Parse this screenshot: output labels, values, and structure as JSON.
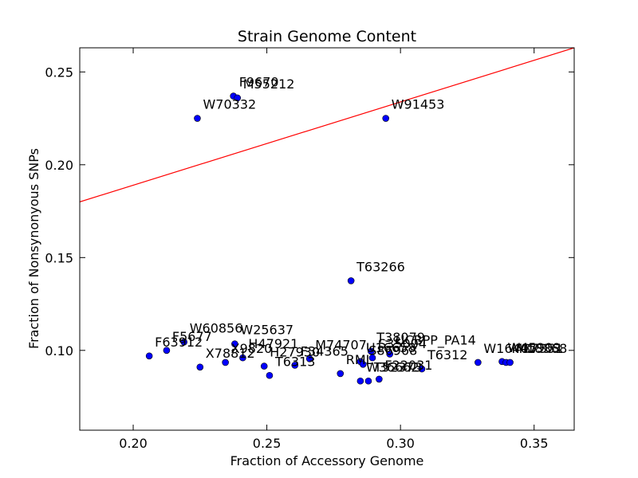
{
  "chart_data": {
    "type": "scatter",
    "title": "Strain Genome Content",
    "xlabel": "Fraction of Accessory Genome",
    "ylabel": "Fraction of Nonsynonyous SNPs",
    "xlim": [
      0.18,
      0.365
    ],
    "ylim": [
      0.057,
      0.263
    ],
    "xticks": [
      {
        "value": 0.2,
        "label": "0.20"
      },
      {
        "value": 0.25,
        "label": "0.25"
      },
      {
        "value": 0.3,
        "label": "0.30"
      },
      {
        "value": 0.35,
        "label": "0.35"
      }
    ],
    "yticks": [
      {
        "value": 0.1,
        "label": "0.10"
      },
      {
        "value": 0.15,
        "label": "0.15"
      },
      {
        "value": 0.2,
        "label": "0.20"
      },
      {
        "value": 0.25,
        "label": "0.25"
      }
    ],
    "grid": false,
    "reference_line": {
      "x": [
        0.18,
        0.365
      ],
      "y": [
        0.18,
        0.263
      ],
      "color": "#ff0000"
    },
    "marker_color": "#0000ff",
    "points": [
      {
        "label": "F9670",
        "x": 0.2375,
        "y": 0.237
      },
      {
        "label": "M55212",
        "x": 0.239,
        "y": 0.236
      },
      {
        "label": "W70332",
        "x": 0.224,
        "y": 0.225
      },
      {
        "label": "W91453",
        "x": 0.2945,
        "y": 0.225
      },
      {
        "label": "T63266",
        "x": 0.2815,
        "y": 0.1375
      },
      {
        "label": "F5677",
        "x": 0.2125,
        "y": 0.1
      },
      {
        "label": "W60856",
        "x": 0.219,
        "y": 0.1045
      },
      {
        "label": "W25637",
        "x": 0.238,
        "y": 0.1035
      },
      {
        "label": "H47921",
        "x": 0.241,
        "y": 0.096
      },
      {
        "label": "X78812",
        "x": 0.225,
        "y": 0.091
      },
      {
        "label": "X9820",
        "x": 0.2345,
        "y": 0.0935
      },
      {
        "label": "H27930",
        "x": 0.249,
        "y": 0.0915
      },
      {
        "label": "T6313",
        "x": 0.251,
        "y": 0.0865
      },
      {
        "label": "F34365",
        "x": 0.2605,
        "y": 0.092
      },
      {
        "label": "M74707",
        "x": 0.266,
        "y": 0.0955
      },
      {
        "label": "RML",
        "x": 0.2775,
        "y": 0.0875
      },
      {
        "label": "T38079",
        "x": 0.289,
        "y": 0.0995
      },
      {
        "label": "U16658",
        "x": 0.285,
        "y": 0.094
      },
      {
        "label": "S86968",
        "x": 0.286,
        "y": 0.0925
      },
      {
        "label": "S35004",
        "x": 0.2895,
        "y": 0.096
      },
      {
        "label": "W36662",
        "x": 0.285,
        "y": 0.0835
      },
      {
        "label": "T52373",
        "x": 0.288,
        "y": 0.0835
      },
      {
        "label": "F22031",
        "x": 0.292,
        "y": 0.0845
      },
      {
        "label": "T6312",
        "x": 0.308,
        "y": 0.09
      },
      {
        "label": "UCBPP_PA14",
        "x": 0.296,
        "y": 0.098
      },
      {
        "label": "W16407",
        "x": 0.329,
        "y": 0.0935
      },
      {
        "label": "W45909",
        "x": 0.338,
        "y": 0.094
      },
      {
        "label": "M37351",
        "x": 0.3395,
        "y": 0.0935
      },
      {
        "label": "M18368",
        "x": 0.341,
        "y": 0.0935
      },
      {
        "label": "F63912",
        "x": 0.206,
        "y": 0.097
      }
    ]
  }
}
